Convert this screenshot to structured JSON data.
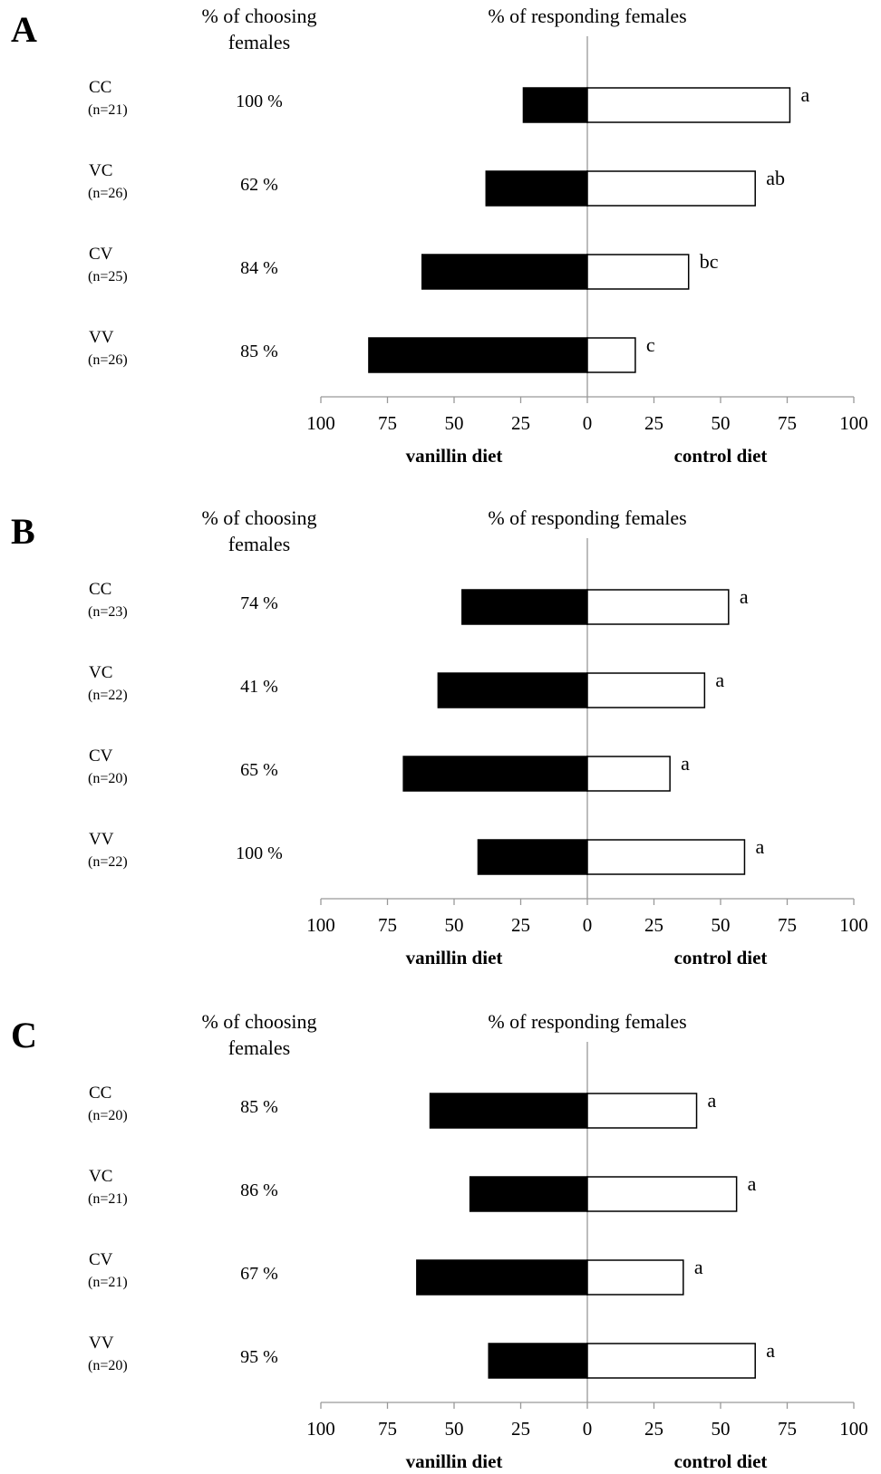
{
  "chart_data": [
    {
      "type": "bar",
      "panel": "A",
      "column_header_choosing": [
        "% of choosing",
        "females"
      ],
      "column_header_responding": "% of responding females",
      "left_axis_label": "vanillin diet",
      "right_axis_label": "control diet",
      "tick_labels": [
        "100",
        "75",
        "50",
        "25",
        "0",
        "25",
        "50",
        "75",
        "100"
      ],
      "xlim": [
        -100,
        100
      ],
      "groups": [
        {
          "name": "CC",
          "n": "(n=21)",
          "choosing": "100 %",
          "vanillin": 24,
          "control": 76,
          "letter": "a"
        },
        {
          "name": "VC",
          "n": "(n=26)",
          "choosing": "62 %",
          "vanillin": 38,
          "control": 63,
          "letter": "ab"
        },
        {
          "name": "CV",
          "n": "(n=25)",
          "choosing": "84 %",
          "vanillin": 62,
          "control": 38,
          "letter": "bc"
        },
        {
          "name": "VV",
          "n": "(n=26)",
          "choosing": "85 %",
          "vanillin": 82,
          "control": 18,
          "letter": "c"
        }
      ]
    },
    {
      "type": "bar",
      "panel": "B",
      "column_header_choosing": [
        "% of choosing",
        "females"
      ],
      "column_header_responding": "% of responding females",
      "left_axis_label": "vanillin diet",
      "right_axis_label": "control diet",
      "tick_labels": [
        "100",
        "75",
        "50",
        "25",
        "0",
        "25",
        "50",
        "75",
        "100"
      ],
      "xlim": [
        -100,
        100
      ],
      "groups": [
        {
          "name": "CC",
          "n": "(n=23)",
          "choosing": "74 %",
          "vanillin": 47,
          "control": 53,
          "letter": "a"
        },
        {
          "name": "VC",
          "n": "(n=22)",
          "choosing": "41 %",
          "vanillin": 56,
          "control": 44,
          "letter": "a"
        },
        {
          "name": "CV",
          "n": "(n=20)",
          "choosing": "65 %",
          "vanillin": 69,
          "control": 31,
          "letter": "a"
        },
        {
          "name": "VV",
          "n": "(n=22)",
          "choosing": "100 %",
          "vanillin": 41,
          "control": 59,
          "letter": "a"
        }
      ]
    },
    {
      "type": "bar",
      "panel": "C",
      "column_header_choosing": [
        "% of choosing",
        "females"
      ],
      "column_header_responding": "% of responding females",
      "left_axis_label": "vanillin diet",
      "right_axis_label": "control diet",
      "tick_labels": [
        "100",
        "75",
        "50",
        "25",
        "0",
        "25",
        "50",
        "75",
        "100"
      ],
      "xlim": [
        -100,
        100
      ],
      "groups": [
        {
          "name": "CC",
          "n": "(n=20)",
          "choosing": "85 %",
          "vanillin": 59,
          "control": 41,
          "letter": "a"
        },
        {
          "name": "VC",
          "n": "(n=21)",
          "choosing": "86 %",
          "vanillin": 44,
          "control": 56,
          "letter": "a"
        },
        {
          "name": "CV",
          "n": "(n=21)",
          "choosing": "67 %",
          "vanillin": 64,
          "control": 36,
          "letter": "a"
        },
        {
          "name": "VV",
          "n": "(n=20)",
          "choosing": "95 %",
          "vanillin": 37,
          "control": 63,
          "letter": "a"
        }
      ]
    }
  ],
  "colors": {
    "vanillin_bar": "#000000",
    "control_bar": "#ffffff",
    "bar_stroke": "#000000",
    "axis_line": "#999999"
  }
}
